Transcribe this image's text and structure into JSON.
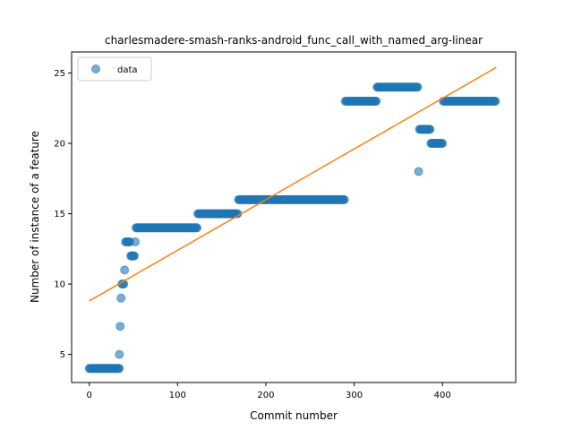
{
  "chart_data": {
    "type": "scatter",
    "title": "charlesmadere-smash-ranks-android_func_call_with_named_arg-linear",
    "xlabel": "Commit number",
    "ylabel": "Number of instance of a feature",
    "xlim": [
      -20,
      483
    ],
    "ylim": [
      3,
      26.5
    ],
    "xticks": [
      0,
      100,
      200,
      300,
      400
    ],
    "yticks": [
      5,
      10,
      15,
      20,
      25
    ],
    "legend": {
      "position": "top-left",
      "entries": [
        "data"
      ]
    },
    "grid": false,
    "colors": {
      "data": "#1f77b4",
      "fit": "#ff7f0e"
    },
    "series": [
      {
        "name": "data",
        "kind": "points",
        "segments": [
          {
            "from": 0,
            "to": 34,
            "y": 4
          },
          {
            "from": 34,
            "to": 34,
            "y": 5
          },
          {
            "from": 35,
            "to": 35,
            "y": 7
          },
          {
            "from": 36,
            "to": 36,
            "y": 9
          },
          {
            "from": 37,
            "to": 39,
            "y": 10
          },
          {
            "from": 40,
            "to": 40,
            "y": 11
          },
          {
            "from": 41,
            "to": 46,
            "y": 13
          },
          {
            "from": 47,
            "to": 51,
            "y": 12
          },
          {
            "from": 52,
            "to": 52,
            "y": 13
          },
          {
            "from": 53,
            "to": 122,
            "y": 14
          },
          {
            "from": 123,
            "to": 168,
            "y": 15
          },
          {
            "from": 169,
            "to": 289,
            "y": 16
          },
          {
            "from": 290,
            "to": 325,
            "y": 23
          },
          {
            "from": 326,
            "to": 372,
            "y": 24
          },
          {
            "from": 373,
            "to": 373,
            "y": 18
          },
          {
            "from": 374,
            "to": 386,
            "y": 21
          },
          {
            "from": 387,
            "to": 400,
            "y": 20
          },
          {
            "from": 401,
            "to": 460,
            "y": 23
          }
        ]
      },
      {
        "name": "fit",
        "kind": "line",
        "x": [
          0,
          461
        ],
        "y": [
          8.8,
          25.4
        ]
      }
    ]
  }
}
